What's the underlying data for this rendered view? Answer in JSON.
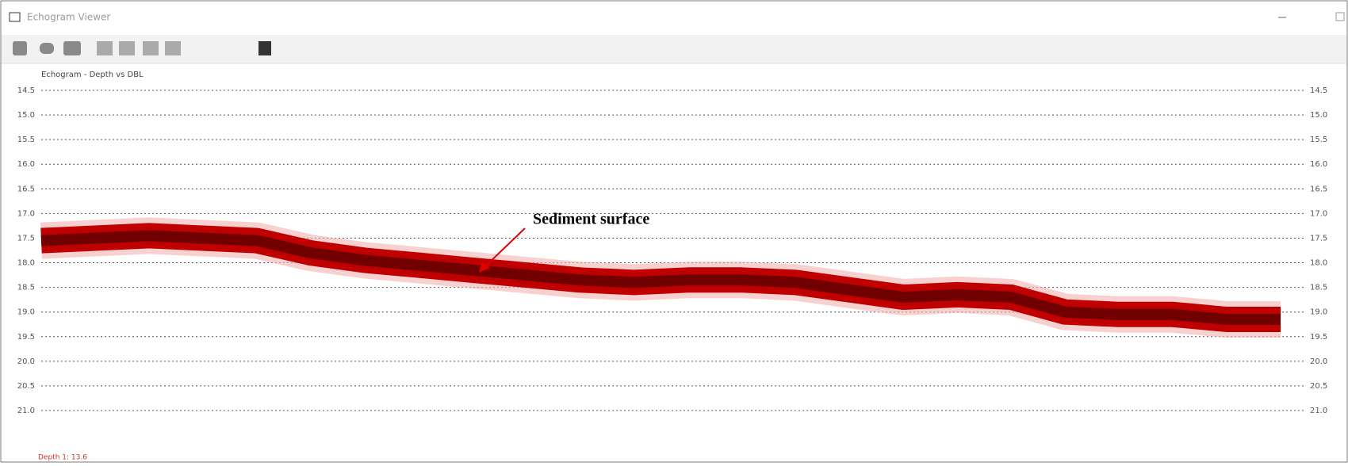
{
  "window": {
    "title": "Echogram Viewer"
  },
  "chart_data": {
    "type": "band",
    "title": "Echogram - Depth vs DBL",
    "annotation": "Sediment surface",
    "values": [
      17.55,
      17.5,
      17.45,
      17.5,
      17.55,
      17.8,
      17.95,
      18.05,
      18.15,
      18.25,
      18.35,
      18.4,
      18.35,
      18.35,
      18.4,
      18.55,
      18.7,
      18.65,
      18.7,
      19.0,
      19.05,
      19.05,
      19.15,
      19.15
    ],
    "color": "#c00000",
    "ylim": [
      14.5,
      21.0
    ],
    "y_inverted": true,
    "grid": true,
    "yticks": [
      14.5,
      {
        "value": 15,
        "label": "15.0"
      },
      15.5,
      {
        "value": 16,
        "label": "16.0"
      },
      16.5,
      {
        "value": 17,
        "label": "17.0"
      },
      17.5,
      {
        "value": 18,
        "label": "18.0"
      },
      18.5,
      {
        "value": 19,
        "label": "19.0"
      },
      19.5,
      {
        "value": 20,
        "label": "20.0"
      },
      20.5,
      {
        "value": 21,
        "label": "21.0"
      }
    ]
  },
  "status": {
    "text": "Depth 1: 13.6"
  }
}
